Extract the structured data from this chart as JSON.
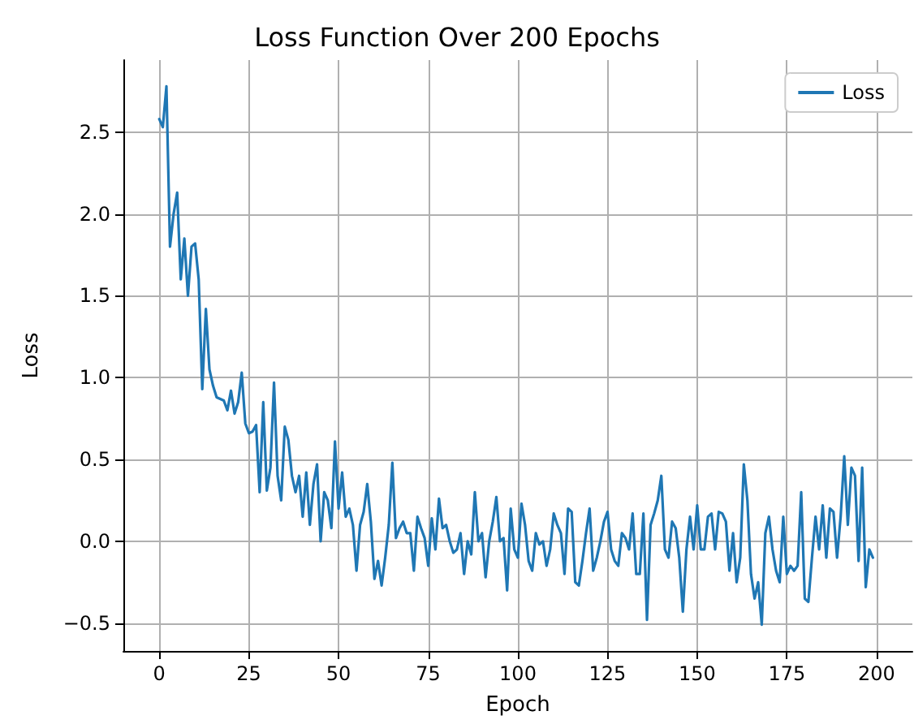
{
  "chart_data": {
    "type": "line",
    "title": "Loss Function Over 200 Epochs",
    "xlabel": "Epoch",
    "ylabel": "Loss",
    "x": [
      0,
      1,
      2,
      3,
      4,
      5,
      6,
      7,
      8,
      9,
      10,
      11,
      12,
      13,
      14,
      15,
      16,
      17,
      18,
      19,
      20,
      21,
      22,
      23,
      24,
      25,
      26,
      27,
      28,
      29,
      30,
      31,
      32,
      33,
      34,
      35,
      36,
      37,
      38,
      39,
      40,
      41,
      42,
      43,
      44,
      45,
      46,
      47,
      48,
      49,
      50,
      51,
      52,
      53,
      54,
      55,
      56,
      57,
      58,
      59,
      60,
      61,
      62,
      63,
      64,
      65,
      66,
      67,
      68,
      69,
      70,
      71,
      72,
      73,
      74,
      75,
      76,
      77,
      78,
      79,
      80,
      81,
      82,
      83,
      84,
      85,
      86,
      87,
      88,
      89,
      90,
      91,
      92,
      93,
      94,
      95,
      96,
      97,
      98,
      99,
      100,
      101,
      102,
      103,
      104,
      105,
      106,
      107,
      108,
      109,
      110,
      111,
      112,
      113,
      114,
      115,
      116,
      117,
      118,
      119,
      120,
      121,
      122,
      123,
      124,
      125,
      126,
      127,
      128,
      129,
      130,
      131,
      132,
      133,
      134,
      135,
      136,
      137,
      138,
      139,
      140,
      141,
      142,
      143,
      144,
      145,
      146,
      147,
      148,
      149,
      150,
      151,
      152,
      153,
      154,
      155,
      156,
      157,
      158,
      159,
      160,
      161,
      162,
      163,
      164,
      165,
      166,
      167,
      168,
      169,
      170,
      171,
      172,
      173,
      174,
      175,
      176,
      177,
      178,
      179,
      180,
      181,
      182,
      183,
      184,
      185,
      186,
      187,
      188,
      189,
      190,
      191,
      192,
      193,
      194,
      195,
      196,
      197,
      198,
      199
    ],
    "series": [
      {
        "name": "Loss",
        "color": "#1f77b4",
        "values": [
          2.58,
          2.53,
          2.78,
          1.8,
          2.0,
          2.13,
          1.6,
          1.85,
          1.5,
          1.8,
          1.82,
          1.6,
          0.93,
          1.42,
          1.05,
          0.95,
          0.88,
          0.87,
          0.86,
          0.8,
          0.92,
          0.78,
          0.85,
          1.03,
          0.72,
          0.66,
          0.67,
          0.71,
          0.3,
          0.85,
          0.31,
          0.45,
          0.97,
          0.4,
          0.25,
          0.7,
          0.62,
          0.4,
          0.3,
          0.4,
          0.15,
          0.42,
          0.1,
          0.35,
          0.47,
          0.0,
          0.3,
          0.25,
          0.08,
          0.61,
          0.2,
          0.42,
          0.15,
          0.2,
          0.1,
          -0.18,
          0.1,
          0.18,
          0.35,
          0.12,
          -0.23,
          -0.12,
          -0.27,
          -0.1,
          0.1,
          0.48,
          0.02,
          0.08,
          0.12,
          0.05,
          0.05,
          -0.18,
          0.15,
          0.08,
          0.02,
          -0.15,
          0.14,
          -0.05,
          0.26,
          0.08,
          0.1,
          0.0,
          -0.07,
          -0.05,
          0.05,
          -0.2,
          0.0,
          -0.08,
          0.3,
          0.0,
          0.05,
          -0.22,
          0.0,
          0.12,
          0.27,
          0.0,
          0.02,
          -0.3,
          0.2,
          -0.05,
          -0.1,
          0.23,
          0.1,
          -0.12,
          -0.18,
          0.05,
          -0.02,
          0.0,
          -0.15,
          -0.05,
          0.17,
          0.1,
          0.05,
          -0.2,
          0.2,
          0.18,
          -0.25,
          -0.27,
          -0.12,
          0.05,
          0.2,
          -0.18,
          -0.1,
          0.0,
          0.12,
          0.18,
          -0.05,
          -0.12,
          -0.15,
          0.05,
          0.02,
          -0.05,
          0.17,
          -0.2,
          -0.2,
          0.17,
          -0.48,
          0.1,
          0.17,
          0.25,
          0.4,
          -0.05,
          -0.1,
          0.12,
          0.08,
          -0.1,
          -0.43,
          -0.05,
          0.15,
          -0.05,
          0.22,
          -0.05,
          -0.05,
          0.15,
          0.17,
          -0.05,
          0.18,
          0.17,
          0.12,
          -0.18,
          0.05,
          -0.25,
          -0.1,
          0.47,
          0.25,
          -0.2,
          -0.35,
          -0.25,
          -0.51,
          0.05,
          0.15,
          -0.05,
          -0.18,
          -0.25,
          0.15,
          -0.2,
          -0.15,
          -0.18,
          -0.15,
          0.3,
          -0.35,
          -0.37,
          -0.1,
          0.15,
          -0.05,
          0.22,
          -0.1,
          0.2,
          0.18,
          -0.1,
          0.15,
          0.52,
          0.1,
          0.45,
          0.4,
          -0.12,
          0.45,
          -0.28,
          -0.05,
          -0.1
        ]
      }
    ],
    "xlim": [
      -10,
      210
    ],
    "xticks": [
      0,
      25,
      50,
      75,
      100,
      125,
      150,
      175,
      200
    ],
    "ylim": [
      -0.67,
      2.94
    ],
    "yticks": [
      {
        "value": -0.5,
        "label": "−0.5"
      },
      {
        "value": 0,
        "label": "0.0"
      },
      0.5,
      {
        "value": 1,
        "label": "1.0"
      },
      1.5,
      {
        "value": 2,
        "label": "2.0"
      },
      2.5
    ],
    "grid": true,
    "legend": "top right",
    "marker": "none",
    "line_style": "solid"
  }
}
